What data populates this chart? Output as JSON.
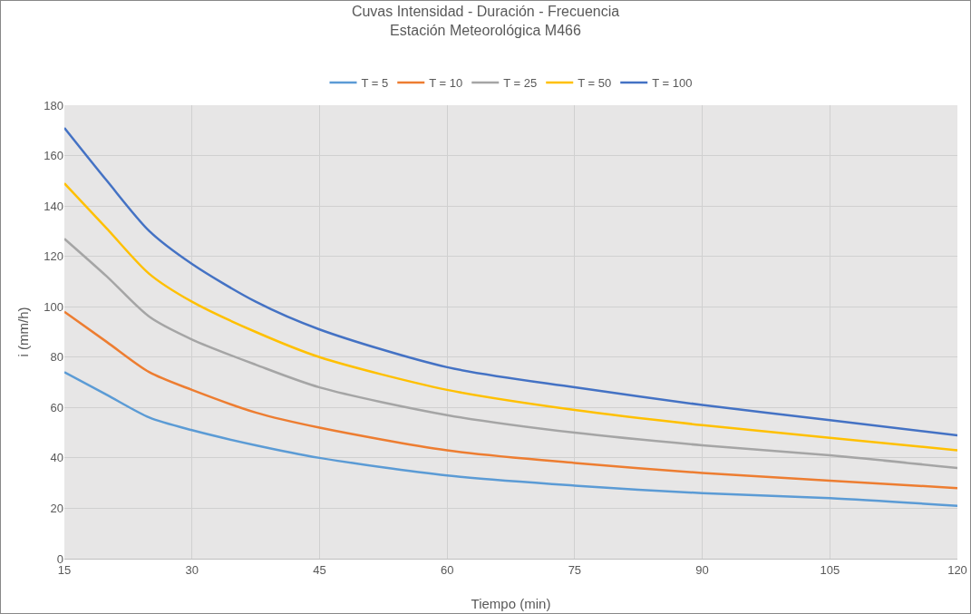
{
  "chart_data": {
    "type": "line",
    "title": "Cuvas Intensidad - Duración - Frecuencia",
    "subtitle": "Estación Meteorológica M466",
    "xlabel": "Tiempo (min)",
    "ylabel": "i (mm/h)",
    "x": [
      15,
      20,
      25,
      30,
      37.5,
      45,
      60,
      75,
      90,
      105,
      120
    ],
    "series": [
      {
        "name": "T = 5",
        "color": "#5b9bd5",
        "values": [
          74,
          65,
          56,
          51,
          45,
          40,
          33,
          29,
          26,
          24,
          21
        ]
      },
      {
        "name": "T = 10",
        "color": "#ed7d31",
        "values": [
          98,
          86,
          74,
          67,
          58,
          52,
          43,
          38,
          34,
          31,
          28
        ]
      },
      {
        "name": "T = 25",
        "color": "#a5a5a5",
        "values": [
          127,
          112,
          96,
          87,
          77,
          68,
          57,
          50,
          45,
          41,
          36
        ]
      },
      {
        "name": "T = 50",
        "color": "#ffc000",
        "values": [
          149,
          131,
          113,
          102,
          90,
          80,
          67,
          59,
          53,
          48,
          43
        ]
      },
      {
        "name": "T = 100",
        "color": "#4472c4",
        "values": [
          171,
          150,
          130,
          117,
          102,
          91,
          76,
          68,
          61,
          55,
          49
        ]
      }
    ],
    "xlim": [
      15,
      120
    ],
    "xticks": [
      15,
      30,
      45,
      60,
      75,
      90,
      105,
      120
    ],
    "ylim": [
      0,
      180
    ],
    "yticks": [
      0,
      20,
      40,
      60,
      80,
      100,
      120,
      140,
      160,
      180
    ],
    "grid": true,
    "legend": "top",
    "marker": "none",
    "line_style": "solid"
  }
}
